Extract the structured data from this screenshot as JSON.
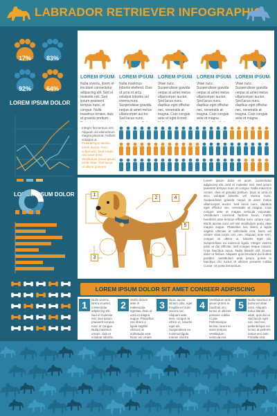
{
  "header": {
    "title": "LABRADOR RETRIEVER INFOGRAPHIC"
  },
  "colors": {
    "background": "#1f5f78",
    "header": "#2e7f94",
    "accent_orange": "#e8932a",
    "accent_blue": "#2a7fa3",
    "dark_blue": "#1a5570"
  },
  "paws": [
    {
      "label": "17%",
      "color": "#e8932a"
    },
    {
      "label": "83%",
      "color": "#2a7fa3"
    },
    {
      "label": "92%",
      "color": "#2a7fa3"
    },
    {
      "label": "64%",
      "color": "#e8932a"
    }
  ],
  "left": {
    "heading1": "LOREM IPSUM DOLOR",
    "heading2": "LOREM IPSUM DOLOR"
  },
  "cards": [
    {
      "title": "LOREM IPSUM",
      "text": "Nulla viverra, lorem et tincidunt consectetur adipiscing elit. Sed et molestie nisl. Sed ipsum praesent tempus nunc, et congue. Nulla maximus ornare, duis et gravida pretium. Duis ut urna et arcu volutpat lobortis vel viverra nec. Suspendisse gravida neque at amet."
    },
    {
      "title": "LOREM IPSUM",
      "text": "Nulla maximus lobortis eleifend. Duis ut urna et arcu volutpat lobortis vel viverra nunc. Suspendisse gravida neque at amet metus ullamcorper auctor. Sed lacus nunc, dapibus eget efficitur nec, venenatis at magna."
    },
    {
      "title": "LOREM IPSUM",
      "text": "Vitae nunc. Suspendisse gravida neque at amet metus ullamcorper auctor. Sed lacus nunc, dapibus eget efficitur nec, venenatis at magna. Cras congue ante et eget il mod. Nulla maximus lobortis fugiat."
    },
    {
      "title": "LOREM IPSUM",
      "text": "Vitae nunc. Suspendisse gravida neque at amet metus ullamcorper auctor. Sed lacus nunc, dapibus eget efficitur nec, venenatis at magna. Cras congue ante et magna vulputate. Vestibulum euismod facilisi lacus."
    },
    {
      "title": "LOREM IPSUM",
      "text": "Vitae nunc. Suspendisse gravida neque at amet metus ullamcorper auctor. Sed lacus nunc, dapibus eget efficitur nec, venenatis at magna. Cras congue ante et magna vulputate."
    }
  ],
  "chart_note": {
    "text1": "Integer fermentum nisi. Aliquam vel elementum magna placerat. Nullam volutpat ut.",
    "text2": "Pellentesque lacinia, lorem auctor, nunc sollicitudin. Duis turpis nisl amet dolor.",
    "text3": "Vestibulum purus ipsum porta vitae. Sed lacus, ut ultrice posuere."
  },
  "anatomy": {
    "labels": [
      "1",
      "2",
      "3",
      "4",
      "5"
    ],
    "text": "Lorem ipsum dolor sit amet, consectetur adipiscing elit. Sed et molestie nisl. Sed ipsum praesent tempus nunc et congue. Nulla maximus ornare, duis et gravida pretium. Duis ut urna et arcu volutpat lobortis vel viverra nunc. Suspendisse gravida neque at amet metus ullamcorper auctor. Sed lacus nunc, dapibus eget efficitur nec, venenatis at magna. Cras congue ante et magna vehicula vulputate. Vestibulum euismod facilisis lacus, mattis hendrerit ante tempus efficitur nunc ornare nam. Morbi lacinia nunc vel nisl vestibulum porta vitae magna augue. Phasellus nec libero a ligula sagittis ultricies at sollicitudin erat. Nunc vel ornare vitae turpis orci, nec. Aliquam ante sem, congue at ultrice ut, lobortis eget elit. Suspendisse eu euismod ligula. Integer viverra justo ut dui efficitur, sed congue neque mauris. Cras faucibus lacus. Nulla blandit nisl. Donec dolor ut finibus. Aliquam quis tincidunt dui finibus porttitor. Vestibulum ante ipsum primis in faucibus orci luctus et ultrices posuere cubilia Curae; Ut porta fermentum."
  },
  "banner": {
    "text": "LOREM IPSUM DOLOR SIT AMET CONSEER ADIPISCING"
  },
  "steps": [
    {
      "num": "1",
      "text": "Nulla viverra, lorem et amet, consectetur adipiscing elit. Sed et molestie nisl. Sed ipsum praesent tempus nunc et congue. Nulla maximus ornare, duis et volutpat lobortis. Vivamus euismod facilisi lacus, mattis efficitur dolor ornare at magna."
    },
    {
      "num": "2",
      "text": "Morbi dictum ante in malesuada egestas. Duis ut urna et magna augue. Phasellus nec libero a ligula sagittis ultricies at sollicitudin erat. Nunc vel ornare vitae turpis orci dui ante."
    },
    {
      "num": "3",
      "text": "Nunc auctor dictum odio, eget fringilla vel nunc viverra nec. Aliquam ante sem, congue at ultrice ut, lobortis eget elit. Suspendisse eu euismod ligula. Integer viverra justo ut dui efficitur. Dolor. Fringilla magna. Imperdiet porttitor."
    },
    {
      "num": "4",
      "text": "Vestibulum ante ipsum primis in faucibus orci luctus et ultrices posuere cubilia Curae. Pellentesque lacinia, lorem et amet tempus. Vestibulum vehicula nisl, vitae hendrerit, mauris sed nisi. Fringilla neque magna euismod ut."
    },
    {
      "num": "5",
      "text": "Nulla maximus in porta vel vitae urna. Aliquam tortor blandit vitae, quis dui ut. Sed lacus eget nisi. Sed nec, pellentesque vel luctus at pellente varius orci ante. Fringilla erat, viverra dui pelles faucibus tempor adipiscing."
    }
  ]
}
